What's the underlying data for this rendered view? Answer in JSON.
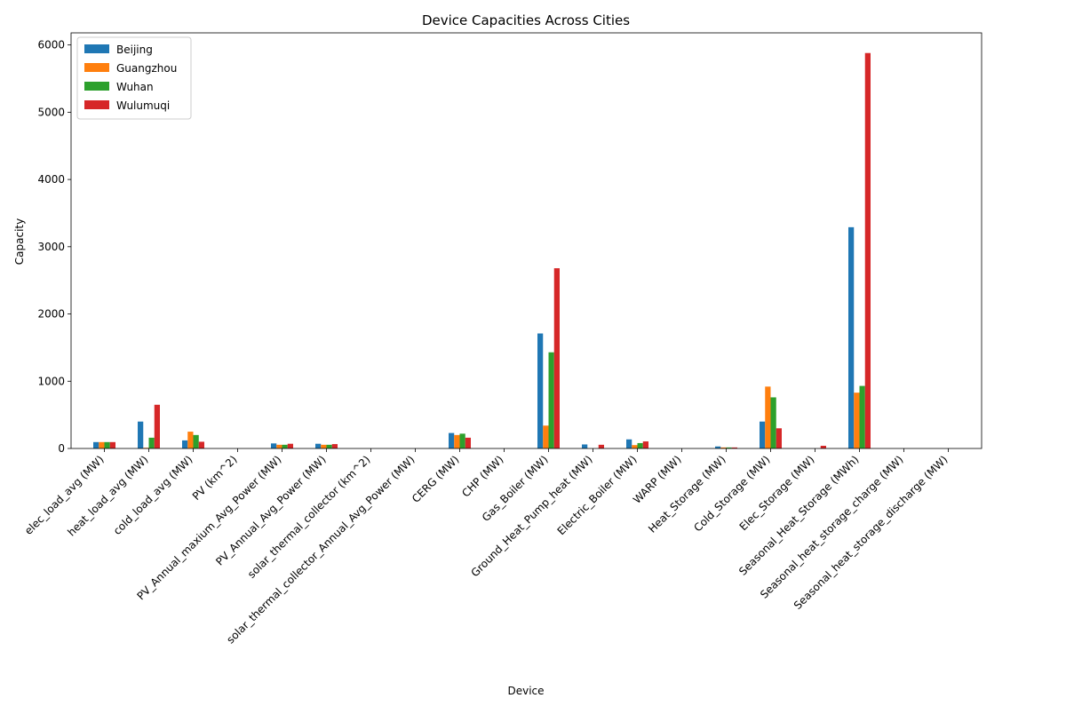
{
  "chart_data": {
    "type": "bar",
    "title": "Device Capacities Across Cities",
    "xlabel": "Device",
    "ylabel": "Capacity",
    "ylim": [
      0,
      6180
    ],
    "yticks": [
      0,
      1000,
      2000,
      3000,
      4000,
      5000,
      6000
    ],
    "grid": false,
    "legend_position": "top-left",
    "categories": [
      "elec_load_avg (MW)",
      "heat_load_avg (MW)",
      "cold_load_avg (MW)",
      "PV (km^2)",
      "PV_Annual_maxium_Avg_Power (MW)",
      "PV_Annual_Avg_Power (MW)",
      "solar_thermal_collector (km^2)",
      "solar_thermal_collector_Annual_Avg_Power (MW)",
      "CERG (MW)",
      "CHP (MW)",
      "Gas_Boiler (MW)",
      "Ground_Heat_Pump_heat (MW)",
      "Electric_Boiler (MW)",
      "WARP (MW)",
      "Heat_Storage (MW)",
      "Cold_Storage (MW)",
      "Elec_Storage (MW)",
      "Seasonal_Heat_Storage (MWh)",
      "Seasonal_heat_storage_charge (MW)",
      "Seasonal_heat_storage_discharge (MW)"
    ],
    "series": [
      {
        "name": "Beijing",
        "color": "#1f77b4",
        "values": [
          95,
          400,
          120,
          0,
          75,
          70,
          0,
          0,
          230,
          0,
          1710,
          60,
          135,
          0,
          30,
          400,
          0,
          3290,
          0,
          0
        ]
      },
      {
        "name": "Guangzhou",
        "color": "#ff7f0e",
        "values": [
          95,
          10,
          250,
          0,
          55,
          55,
          0,
          0,
          200,
          0,
          340,
          0,
          50,
          0,
          15,
          920,
          0,
          830,
          0,
          0
        ]
      },
      {
        "name": "Wuhan",
        "color": "#2ca02c",
        "values": [
          95,
          160,
          200,
          0,
          55,
          55,
          0,
          0,
          220,
          0,
          1430,
          0,
          80,
          0,
          15,
          760,
          0,
          930,
          0,
          0
        ]
      },
      {
        "name": "Wulumuqi",
        "color": "#d62728",
        "values": [
          95,
          650,
          100,
          0,
          70,
          65,
          0,
          0,
          160,
          0,
          2680,
          55,
          105,
          0,
          15,
          300,
          40,
          5880,
          0,
          0
        ]
      }
    ]
  }
}
